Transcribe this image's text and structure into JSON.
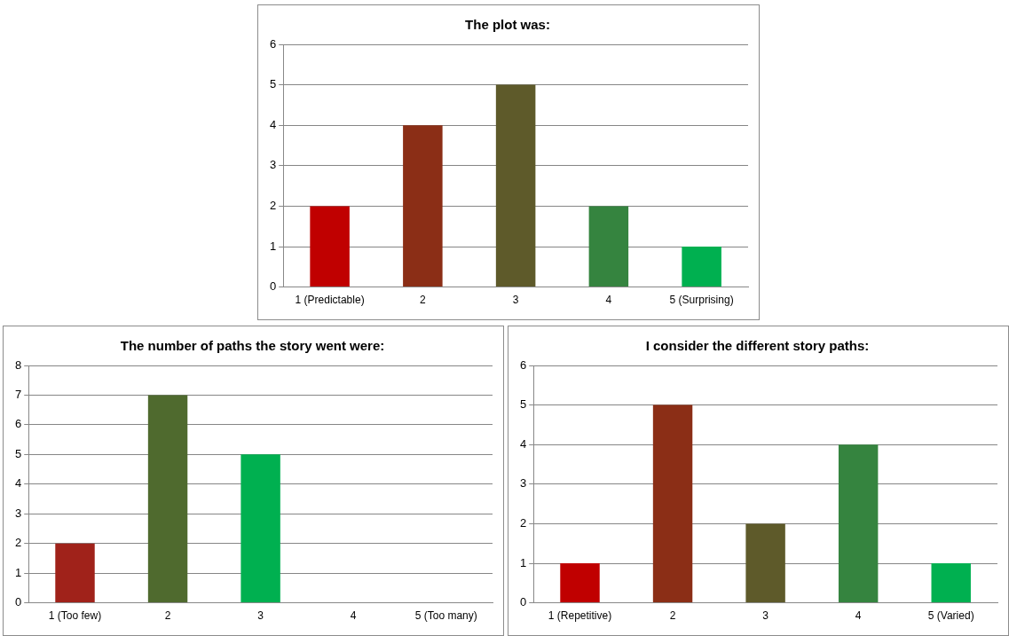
{
  "chart_data": [
    {
      "type": "bar",
      "title": "The plot was:",
      "categories": [
        "1 (Predictable)",
        "2",
        "3",
        "4",
        "5 (Surprising)"
      ],
      "values": [
        2,
        4,
        5,
        2,
        1
      ],
      "colors": [
        "#c00000",
        "#8b2e16",
        "#5e5a2a",
        "#35843f",
        "#00b050"
      ],
      "ylim": [
        0,
        6
      ],
      "yticks": [
        0,
        1,
        2,
        3,
        4,
        5,
        6
      ],
      "grid": "y",
      "legend": false
    },
    {
      "type": "bar",
      "title": "The number of paths the story went were:",
      "categories": [
        "1 (Too few)",
        "2",
        "3",
        "4",
        "5 (Too many)"
      ],
      "values": [
        2,
        7,
        5,
        0,
        0
      ],
      "colors": [
        "#a0221a",
        "#4f6a2e",
        "#00b050",
        "#35843f",
        "#00b050"
      ],
      "ylim": [
        0,
        8
      ],
      "yticks": [
        0,
        1,
        2,
        3,
        4,
        5,
        6,
        7,
        8
      ],
      "grid": "y",
      "legend": false
    },
    {
      "type": "bar",
      "title": "I consider the different story paths:",
      "categories": [
        "1 (Repetitive)",
        "2",
        "3",
        "4",
        "5 (Varied)"
      ],
      "values": [
        1,
        5,
        2,
        4,
        1
      ],
      "colors": [
        "#c00000",
        "#8b2e16",
        "#5e5a2a",
        "#35843f",
        "#00b050"
      ],
      "ylim": [
        0,
        6
      ],
      "yticks": [
        0,
        1,
        2,
        3,
        4,
        5,
        6
      ],
      "grid": "y",
      "legend": false
    }
  ]
}
